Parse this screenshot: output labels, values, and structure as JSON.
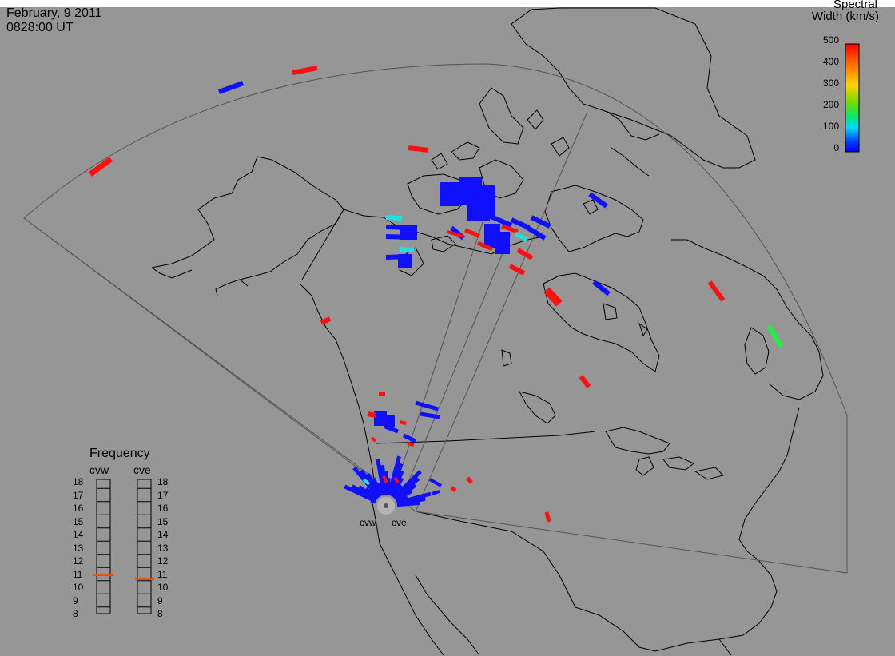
{
  "header": {
    "date": "February, 9 2011",
    "time": "0828:00 UT"
  },
  "colorbar": {
    "title_line1": "Spectral",
    "title_line2": "Width (km/s)",
    "ticks": [
      "500",
      "400",
      "300",
      "200",
      "100",
      "0"
    ],
    "gradient": [
      "#ff0000",
      "#ff6a00",
      "#ffd200",
      "#6edc00",
      "#00e87a",
      "#00d8ff",
      "#0040ff",
      "#0000ff"
    ]
  },
  "frequency_panel": {
    "title": "Frequency",
    "radars": [
      {
        "name": "cvw",
        "value_mhz": 10.9
      },
      {
        "name": "cve",
        "value_mhz": 10.6
      }
    ],
    "scale": [
      "18",
      "17",
      "16",
      "15",
      "14",
      "13",
      "12",
      "11",
      "10",
      "9",
      "8"
    ]
  },
  "radar_labels": [
    "cvw",
    "cve"
  ],
  "colors": {
    "background": "#969696",
    "coast": "#000000",
    "fov": "#555555",
    "low_width": "#1010ff",
    "high_width": "#ff1010",
    "mid_cyan": "#20e0e0",
    "mid_green": "#20f040",
    "freq_marker": "#e85010"
  }
}
